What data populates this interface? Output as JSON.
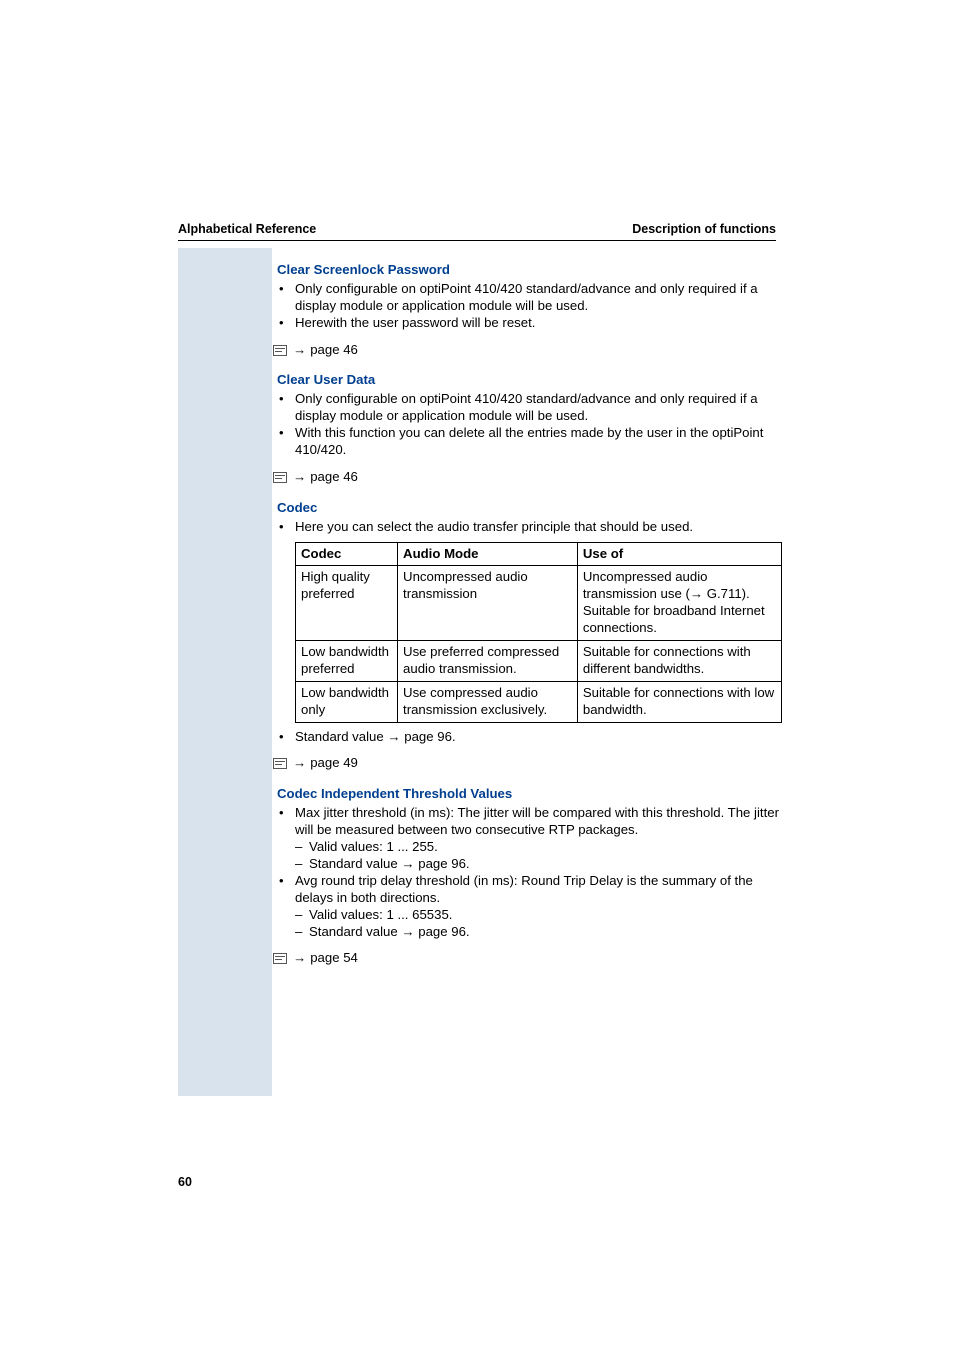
{
  "colors": {
    "heading": "#003f8f",
    "text": "#000000",
    "sidebar": "#d9e3ee",
    "background": "#ffffff",
    "table_border": "#000000"
  },
  "typography": {
    "body_fontsize_pt": 10,
    "header_fontsize_pt": 9.5,
    "heading_fontweight": "bold"
  },
  "header": {
    "left": "Alphabetical Reference",
    "right": "Description of functions"
  },
  "page_number": "60",
  "arrow_glyph": "→",
  "sections": {
    "clear_screenlock": {
      "title": "Clear Screenlock Password",
      "bullets": [
        "Only configurable on optiPoint 410/420 standard/advance and only required if a display module or application module will be used.",
        "Herewith the user password will be reset."
      ],
      "pageref": "page 46"
    },
    "clear_user_data": {
      "title": "Clear User Data",
      "bullets": [
        "Only configurable on optiPoint 410/420 standard/advance and only required if a display module or application module will be used.",
        "With this function you can delete all the entries made by the user in the optiPoint 410/420."
      ],
      "pageref": "page 46"
    },
    "codec": {
      "title": "Codec",
      "intro_bullet": "Here you can select the audio transfer principle that should be used.",
      "table": {
        "columns": [
          "Codec",
          "Audio Mode",
          "Use of"
        ],
        "column_widths_pct": [
          21,
          37,
          42
        ],
        "rows": [
          [
            "High quality preferred",
            "Uncompressed audio transmission",
            "Uncompressed audio transmission use (→ G.711). Suitable for broadband Internet connections."
          ],
          [
            "Low bandwidth preferred",
            "Use preferred compressed audio transmission.",
            "Suitable for connections with different bandwidths."
          ],
          [
            "Low bandwidth only",
            "Use compressed audio transmission exclusively.",
            "Suitable for connections with low bandwidth."
          ]
        ]
      },
      "post_bullet_prefix": "Standard value ",
      "post_bullet_ref": "page 96.",
      "pageref": "page 49"
    },
    "codec_independent": {
      "title": "Codec Independent Threshold Values",
      "items": [
        {
          "text": "Max jitter threshold (in ms): The jitter will be compared with this threshold. The jitter will be measured between two consecutive RTP packages.",
          "sub": [
            {
              "plain": "Valid values: 1 ... 255."
            },
            {
              "prefix": "Standard value ",
              "ref": "page 96."
            }
          ]
        },
        {
          "text": "Avg round trip delay threshold (in ms): Round Trip Delay is the summary of the delays in both directions.",
          "sub": [
            {
              "plain": "Valid values: 1 ... 65535."
            },
            {
              "prefix": "Standard value ",
              "ref": "page 96."
            }
          ]
        }
      ],
      "pageref": "page 54"
    }
  }
}
